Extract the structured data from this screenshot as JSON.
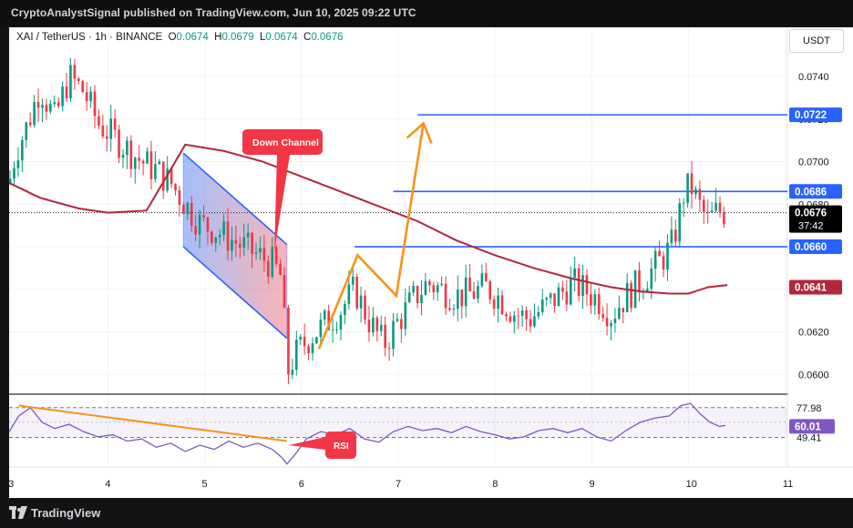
{
  "header": {
    "publish_text": "CryptoAnalystSignal published on TradingView.com, Jun 10, 2025 09:22 UTC"
  },
  "legend": {
    "symbol": "XAI / TetherUS · 1h · BINANCE",
    "o_label": "O",
    "o_value": "0.0674",
    "h_label": "H",
    "h_value": "0.0679",
    "l_label": "L",
    "l_value": "0.0674",
    "c_label": "C",
    "c_value": "0.0676"
  },
  "currency_button": "USDT",
  "footer": {
    "brand": "TradingView"
  },
  "colors": {
    "bull": "#089981",
    "bear": "#f23645",
    "ma": "#b2273a",
    "level": "#2962ff",
    "projection": "#f7931a",
    "rsi": "#7e57c2",
    "label_red": "#f23645",
    "price_black": "#000000"
  },
  "chart_data": {
    "type": "candlestick",
    "title": "XAI / TetherUS · 1h · BINANCE",
    "xlabel": "",
    "ylabel": "",
    "x_ticks": [
      "3",
      "4",
      "5",
      "6",
      "7",
      "8",
      "9",
      "10",
      "11"
    ],
    "y_ticks": [
      "0.0600",
      "0.0620",
      "0.0640",
      "0.0660",
      "0.0680",
      "0.0700",
      "0.0720",
      "0.0740"
    ],
    "ylim": [
      0.0592,
      0.0752
    ],
    "xlim": [
      2.98,
      11.02
    ],
    "grid": true,
    "price_labels": [
      {
        "value": "0.0722",
        "kind": "level"
      },
      {
        "value": "0.0686",
        "kind": "level"
      },
      {
        "value": "0.0676",
        "kind": "last",
        "countdown": "37:42"
      },
      {
        "value": "0.0660",
        "kind": "level"
      },
      {
        "value": "0.0641",
        "kind": "ma"
      }
    ],
    "horizontal_levels": [
      {
        "y": 0.0722,
        "x_start": 7.2,
        "x_end": 11.02
      },
      {
        "y": 0.0686,
        "x_start": 6.95,
        "x_end": 11.02
      },
      {
        "y": 0.066,
        "x_start": 6.55,
        "x_end": 11.02
      }
    ],
    "channel": {
      "upper": [
        [
          4.78,
          0.0704
        ],
        [
          5.85,
          0.0661
        ]
      ],
      "lower": [
        [
          4.78,
          0.066
        ],
        [
          5.85,
          0.0617
        ]
      ],
      "label": "Down Channel"
    },
    "projection_path": [
      [
        6.18,
        0.0612
      ],
      [
        6.58,
        0.0656
      ],
      [
        6.98,
        0.0637
      ],
      [
        7.26,
        0.0718
      ]
    ],
    "ma_line": [
      [
        2.98,
        0.069
      ],
      [
        3.3,
        0.0683
      ],
      [
        3.7,
        0.0678
      ],
      [
        4.0,
        0.0676
      ],
      [
        4.4,
        0.0677
      ],
      [
        4.8,
        0.0708
      ],
      [
        5.2,
        0.0705
      ],
      [
        5.6,
        0.07
      ],
      [
        6.0,
        0.0693
      ],
      [
        6.4,
        0.0686
      ],
      [
        6.8,
        0.0679
      ],
      [
        7.2,
        0.0672
      ],
      [
        7.6,
        0.0663
      ],
      [
        8.0,
        0.0656
      ],
      [
        8.4,
        0.065
      ],
      [
        8.8,
        0.0645
      ],
      [
        9.2,
        0.0641
      ],
      [
        9.5,
        0.0639
      ],
      [
        9.8,
        0.0638
      ],
      [
        10.0,
        0.0638
      ],
      [
        10.2,
        0.0641
      ],
      [
        10.4,
        0.0642
      ]
    ],
    "price_path": [
      [
        2.98,
        0.069
      ],
      [
        3.05,
        0.0705
      ],
      [
        3.15,
        0.0715
      ],
      [
        3.3,
        0.0735
      ],
      [
        3.45,
        0.072
      ],
      [
        3.6,
        0.074
      ],
      [
        3.75,
        0.0733
      ],
      [
        3.9,
        0.0718
      ],
      [
        4.05,
        0.0712
      ],
      [
        4.2,
        0.0706
      ],
      [
        4.35,
        0.07
      ],
      [
        4.5,
        0.0696
      ],
      [
        4.65,
        0.069
      ],
      [
        4.8,
        0.068
      ],
      [
        4.95,
        0.0671
      ],
      [
        5.1,
        0.0668
      ],
      [
        5.25,
        0.0664
      ],
      [
        5.4,
        0.066
      ],
      [
        5.55,
        0.0656
      ],
      [
        5.7,
        0.0652
      ],
      [
        5.8,
        0.0645
      ],
      [
        5.85,
        0.06
      ],
      [
        5.92,
        0.0608
      ],
      [
        6.0,
        0.0613
      ],
      [
        6.1,
        0.0618
      ],
      [
        6.25,
        0.0624
      ],
      [
        6.4,
        0.063
      ],
      [
        6.55,
        0.064
      ],
      [
        6.7,
        0.0625
      ],
      [
        6.85,
        0.0614
      ],
      [
        7.0,
        0.0625
      ],
      [
        7.15,
        0.0635
      ],
      [
        7.3,
        0.0643
      ],
      [
        7.45,
        0.064
      ],
      [
        7.6,
        0.0637
      ],
      [
        7.75,
        0.0638
      ],
      [
        7.9,
        0.0641
      ],
      [
        8.05,
        0.0636
      ],
      [
        8.2,
        0.0629
      ],
      [
        8.35,
        0.0626
      ],
      [
        8.5,
        0.0631
      ],
      [
        8.65,
        0.0637
      ],
      [
        8.8,
        0.0643
      ],
      [
        8.95,
        0.0639
      ],
      [
        9.1,
        0.0634
      ],
      [
        9.2,
        0.0628
      ],
      [
        9.3,
        0.0634
      ],
      [
        9.45,
        0.0641
      ],
      [
        9.6,
        0.0648
      ],
      [
        9.72,
        0.0654
      ],
      [
        9.82,
        0.066
      ],
      [
        9.88,
        0.067
      ],
      [
        9.95,
        0.0685
      ],
      [
        10.02,
        0.0689
      ],
      [
        10.1,
        0.068
      ],
      [
        10.2,
        0.0672
      ],
      [
        10.3,
        0.0677
      ],
      [
        10.38,
        0.0676
      ]
    ],
    "rsi": {
      "value": "60.01",
      "levels": [
        "77.98",
        "49.41"
      ],
      "ylim": [
        22,
        90
      ],
      "label": "RSI",
      "path": [
        [
          2.98,
          55
        ],
        [
          3.08,
          70
        ],
        [
          3.2,
          78
        ],
        [
          3.32,
          64
        ],
        [
          3.45,
          58
        ],
        [
          3.6,
          62
        ],
        [
          3.75,
          55
        ],
        [
          3.9,
          50
        ],
        [
          4.05,
          52
        ],
        [
          4.2,
          46
        ],
        [
          4.35,
          48
        ],
        [
          4.5,
          40
        ],
        [
          4.65,
          44
        ],
        [
          4.8,
          36
        ],
        [
          4.95,
          42
        ],
        [
          5.1,
          38
        ],
        [
          5.25,
          46
        ],
        [
          5.4,
          40
        ],
        [
          5.55,
          44
        ],
        [
          5.7,
          38
        ],
        [
          5.8,
          30
        ],
        [
          5.85,
          24
        ],
        [
          5.95,
          35
        ],
        [
          6.05,
          48
        ],
        [
          6.2,
          55
        ],
        [
          6.35,
          52
        ],
        [
          6.5,
          58
        ],
        [
          6.65,
          48
        ],
        [
          6.8,
          45
        ],
        [
          6.95,
          55
        ],
        [
          7.1,
          60
        ],
        [
          7.25,
          56
        ],
        [
          7.4,
          58
        ],
        [
          7.55,
          54
        ],
        [
          7.7,
          60
        ],
        [
          7.85,
          55
        ],
        [
          8.0,
          52
        ],
        [
          8.15,
          48
        ],
        [
          8.3,
          50
        ],
        [
          8.45,
          56
        ],
        [
          8.6,
          58
        ],
        [
          8.75,
          54
        ],
        [
          8.9,
          58
        ],
        [
          9.05,
          50
        ],
        [
          9.2,
          46
        ],
        [
          9.35,
          56
        ],
        [
          9.5,
          64
        ],
        [
          9.65,
          68
        ],
        [
          9.8,
          70
        ],
        [
          9.92,
          80
        ],
        [
          10.02,
          82
        ],
        [
          10.12,
          72
        ],
        [
          10.22,
          64
        ],
        [
          10.32,
          60
        ],
        [
          10.38,
          61
        ]
      ],
      "trendline": [
        [
          3.08,
          80
        ],
        [
          5.85,
          46
        ]
      ]
    },
    "annotations": [
      "Down Channel",
      "RSI"
    ]
  }
}
